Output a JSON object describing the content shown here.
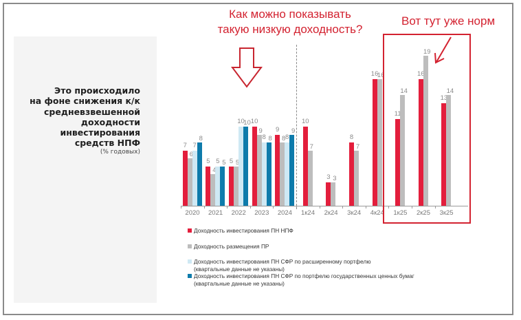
{
  "panel": {
    "title_lines": [
      "Это происходило",
      "на фоне снижения к/к",
      "средневзвешенной",
      "доходности",
      "инвестирования",
      "средств НПФ"
    ],
    "subtitle": "(% годовых)"
  },
  "annotations": {
    "question_line1": "Как можно показывать",
    "question_line2": "такую низкую доходность?",
    "ok_text": "Вот тут уже норм",
    "color": "#d32230"
  },
  "colors": {
    "npf": "#e31e3c",
    "pr": "#bdbdbd",
    "sfr_ext": "#cfe9f4",
    "sfr_gov": "#0e7bab"
  },
  "legend": [
    {
      "label": "Доходность инвестирования ПН НПФ",
      "note": "",
      "color": "#e31e3c"
    },
    {
      "label": "Доходность размещения ПР",
      "note": "",
      "color": "#bdbdbd"
    },
    {
      "label": "Доходность инвестирования ПН СФР по расширенному портфелю",
      "note": "(квартальные данные не указаны)",
      "color": "#cfe9f4"
    },
    {
      "label": "Доходность инвестирования ПН СФР по портфелю государственных ценных бумаг",
      "note": "(квартальные данные не указаны)",
      "color": "#0e7bab"
    }
  ],
  "chart_data": {
    "type": "bar",
    "title": "Это происходило на фоне снижения к/к средневзвешенной доходности инвестирования средств НПФ",
    "ylabel": "% годовых",
    "xlabel": "",
    "categories": [
      "2020",
      "2021",
      "2022",
      "2023",
      "2024",
      "1к24",
      "2к24",
      "3к24",
      "4к24",
      "1к25",
      "2к25",
      "3к25"
    ],
    "series": [
      {
        "name": "Доходность инвестирования ПН НПФ",
        "values": [
          7,
          5,
          5,
          10,
          9,
          10,
          3,
          8,
          16,
          11,
          16,
          13
        ]
      },
      {
        "name": "Доходность размещения ПР",
        "values": [
          6,
          4,
          5,
          9,
          8,
          7,
          3,
          7,
          16,
          14,
          19,
          14
        ]
      },
      {
        "name": "Доходность инвестирования ПН СФР по расширенному портфелю",
        "values": [
          7,
          5,
          10,
          8,
          8,
          null,
          null,
          null,
          null,
          null,
          null,
          null
        ]
      },
      {
        "name": "Доходность инвестирования ПН СФР по портфелю государственных ценных бумаг",
        "values": [
          8,
          5,
          10,
          8,
          9,
          null,
          null,
          null,
          null,
          null,
          null,
          null
        ]
      }
    ],
    "grid": false,
    "legend_position": "bottom",
    "ylim": [
      0,
      20
    ],
    "annotations": [
      "Как можно показывать такую низкую доходность?",
      "Вот тут уже норм"
    ]
  }
}
